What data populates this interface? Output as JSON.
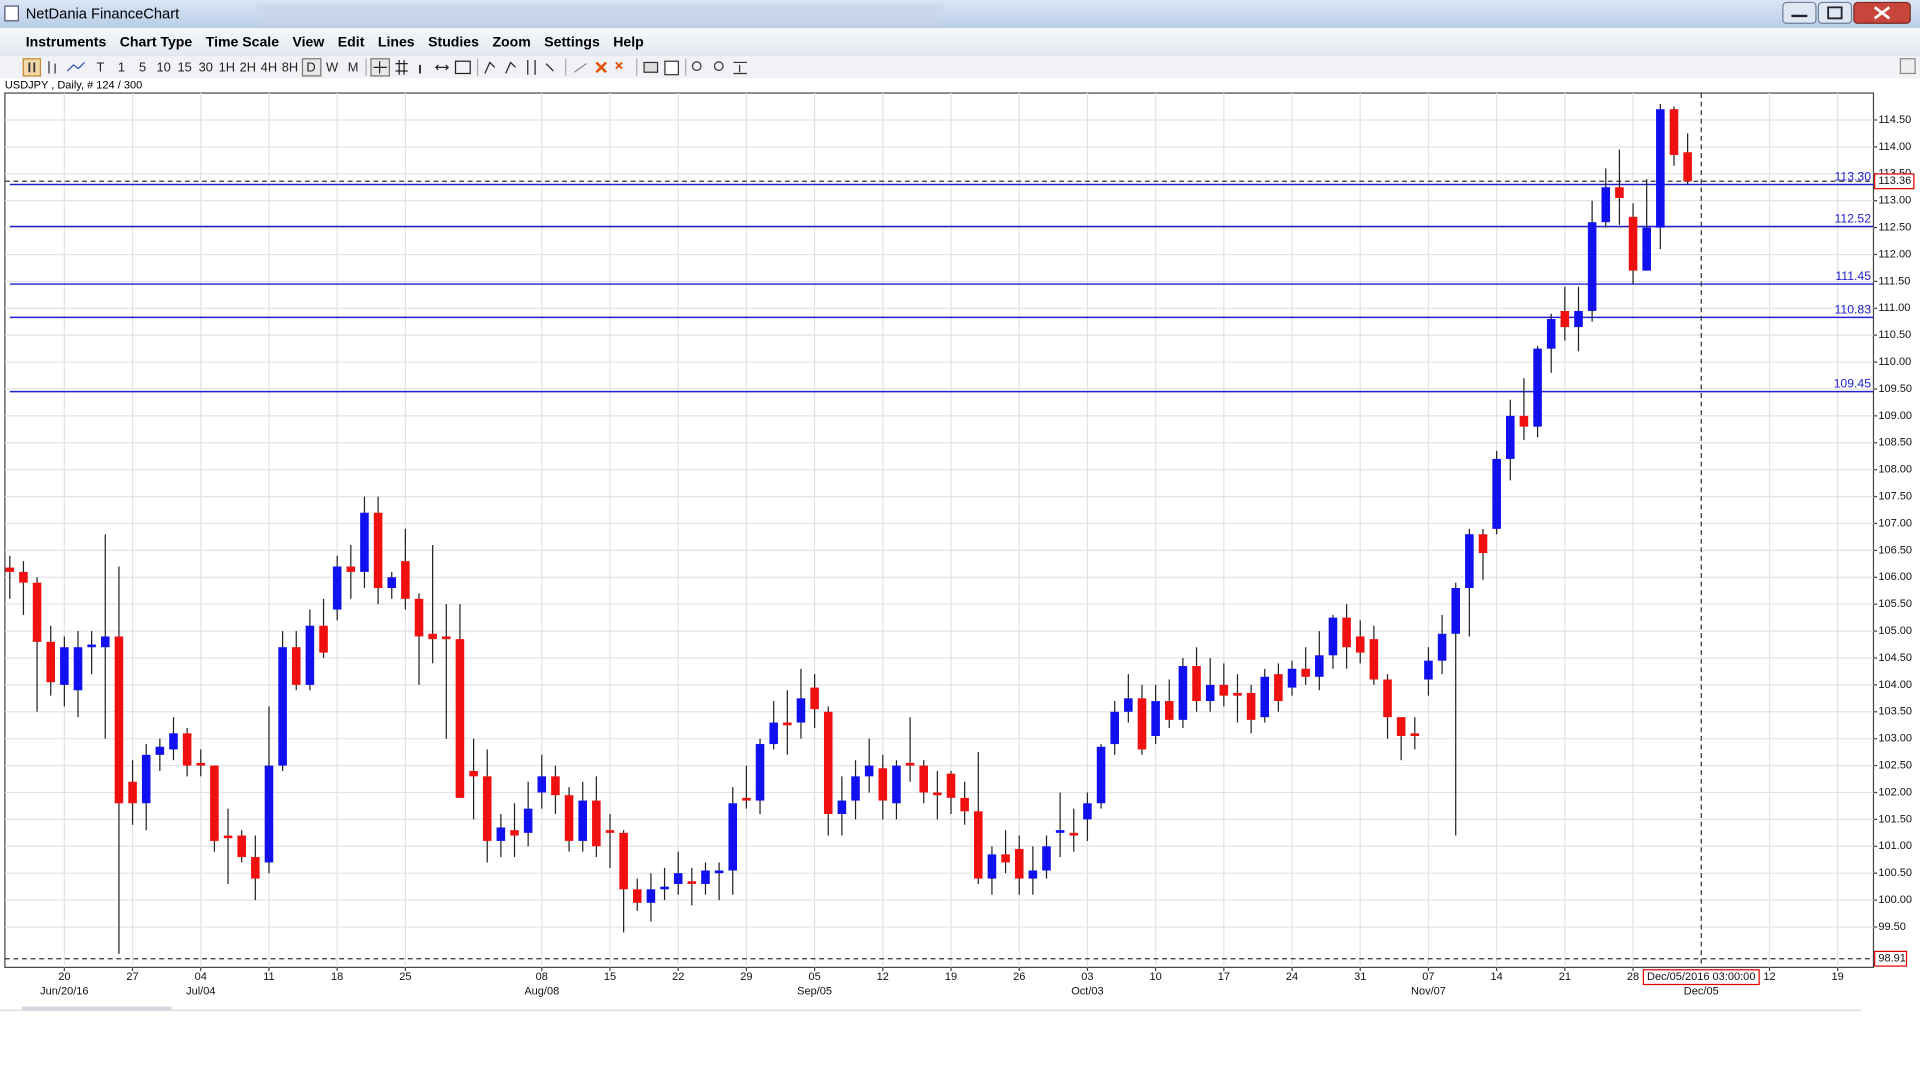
{
  "window": {
    "title": "NetDania FinanceChart",
    "menu": [
      "Instruments",
      "Chart Type",
      "Time Scale",
      "View",
      "Edit",
      "Lines",
      "Studies",
      "Zoom",
      "Settings",
      "Help"
    ],
    "toolbar": [
      "T",
      "1",
      "5",
      "10",
      "15",
      "30",
      "1H",
      "2H",
      "4H",
      "8H",
      "D",
      "W",
      "M"
    ]
  },
  "chart_data": {
    "type": "candlestick",
    "subtitle": "USDJPY , Daily, # 124 / 300",
    "up_color": "#1010f0",
    "down_color": "#f01010",
    "grid": true,
    "x": [
      "2016-06-14",
      "2016-06-15",
      "2016-06-16",
      "2016-06-17",
      "2016-06-20",
      "2016-06-21",
      "2016-06-22",
      "2016-06-23",
      "2016-06-24",
      "2016-06-27",
      "2016-06-28",
      "2016-06-29",
      "2016-06-30",
      "2016-07-01",
      "2016-07-04",
      "2016-07-05",
      "2016-07-06",
      "2016-07-07",
      "2016-07-08",
      "2016-07-11",
      "2016-07-12",
      "2016-07-13",
      "2016-07-14",
      "2016-07-15",
      "2016-07-18",
      "2016-07-19",
      "2016-07-20",
      "2016-07-21",
      "2016-07-22",
      "2016-07-25",
      "2016-07-26",
      "2016-07-27",
      "2016-07-28",
      "2016-07-29",
      "2016-08-01",
      "2016-08-02",
      "2016-08-03",
      "2016-08-04",
      "2016-08-05",
      "2016-08-08",
      "2016-08-09",
      "2016-08-10",
      "2016-08-11",
      "2016-08-12",
      "2016-08-15",
      "2016-08-16",
      "2016-08-17",
      "2016-08-18",
      "2016-08-19",
      "2016-08-22",
      "2016-08-23",
      "2016-08-24",
      "2016-08-25",
      "2016-08-26",
      "2016-08-29",
      "2016-08-30",
      "2016-08-31",
      "2016-09-01",
      "2016-09-02",
      "2016-09-05",
      "2016-09-06",
      "2016-09-07",
      "2016-09-08",
      "2016-09-09",
      "2016-09-12",
      "2016-09-13",
      "2016-09-14",
      "2016-09-15",
      "2016-09-16",
      "2016-09-19",
      "2016-09-20",
      "2016-09-21",
      "2016-09-22",
      "2016-09-23",
      "2016-09-26",
      "2016-09-27",
      "2016-09-28",
      "2016-09-29",
      "2016-09-30",
      "2016-10-03",
      "2016-10-04",
      "2016-10-05",
      "2016-10-06",
      "2016-10-07",
      "2016-10-10",
      "2016-10-11",
      "2016-10-12",
      "2016-10-13",
      "2016-10-14",
      "2016-10-17",
      "2016-10-18",
      "2016-10-19",
      "2016-10-20",
      "2016-10-21",
      "2016-10-24",
      "2016-10-25",
      "2016-10-26",
      "2016-10-27",
      "2016-10-28",
      "2016-10-31",
      "2016-11-01",
      "2016-11-02",
      "2016-11-03",
      "2016-11-04",
      "2016-11-07",
      "2016-11-08",
      "2016-11-09",
      "2016-11-10",
      "2016-11-11",
      "2016-11-14",
      "2016-11-15",
      "2016-11-16",
      "2016-11-17",
      "2016-11-18",
      "2016-11-21",
      "2016-11-22",
      "2016-11-23",
      "2016-11-24",
      "2016-11-25",
      "2016-11-28",
      "2016-11-29",
      "2016-11-30",
      "2016-12-01",
      "2016-12-02"
    ],
    "open": [
      106.18,
      106.1,
      105.9,
      104.8,
      104.0,
      103.9,
      104.7,
      104.7,
      104.9,
      102.2,
      101.8,
      102.7,
      102.8,
      103.1,
      102.55,
      102.5,
      101.2,
      101.2,
      100.8,
      100.7,
      102.5,
      104.7,
      104.0,
      105.1,
      105.4,
      106.2,
      106.1,
      107.2,
      105.8,
      106.3,
      105.6,
      104.95,
      104.9,
      104.85,
      102.4,
      102.3,
      101.1,
      101.3,
      101.25,
      102.0,
      102.3,
      101.95,
      101.1,
      101.85,
      101.3,
      101.25,
      100.2,
      99.95,
      100.2,
      100.3,
      100.35,
      100.3,
      100.5,
      100.55,
      101.9,
      101.85,
      102.9,
      103.3,
      103.3,
      103.95,
      103.5,
      101.6,
      101.85,
      102.3,
      102.45,
      101.8,
      102.55,
      102.5,
      102.0,
      102.35,
      101.9,
      101.65,
      100.4,
      100.85,
      100.95,
      100.4,
      100.55,
      101.25,
      101.25,
      101.5,
      101.8,
      102.9,
      103.5,
      103.75,
      103.05,
      103.7,
      103.35,
      104.35,
      103.7,
      104.0,
      103.85,
      103.85,
      103.4,
      104.2,
      103.95,
      104.3,
      104.15,
      104.55,
      105.25,
      104.9,
      104.85,
      104.1,
      103.4,
      103.1,
      104.1,
      104.45,
      104.95,
      105.8,
      106.8,
      106.9,
      108.2,
      109.0,
      108.8,
      110.25,
      110.95,
      110.65,
      110.95,
      112.6,
      113.25,
      112.7,
      111.7,
      112.5,
      114.7,
      113.9
    ],
    "high": [
      106.4,
      106.3,
      106.0,
      105.1,
      104.9,
      105.0,
      105.0,
      106.8,
      106.2,
      102.6,
      102.9,
      103.0,
      103.4,
      103.2,
      102.8,
      102.5,
      101.7,
      101.3,
      101.2,
      103.6,
      105.0,
      105.0,
      105.4,
      105.6,
      106.4,
      106.6,
      107.5,
      107.5,
      106.1,
      106.9,
      105.7,
      106.6,
      105.5,
      105.5,
      103.0,
      102.8,
      101.6,
      101.8,
      102.2,
      102.7,
      102.5,
      102.1,
      102.2,
      102.3,
      101.6,
      101.3,
      100.4,
      100.5,
      100.6,
      100.9,
      100.6,
      100.7,
      100.7,
      102.1,
      102.5,
      103.0,
      103.7,
      103.9,
      104.3,
      104.2,
      103.6,
      102.3,
      102.6,
      103.0,
      102.7,
      102.6,
      103.4,
      102.6,
      102.4,
      102.4,
      102.2,
      102.75,
      101.0,
      101.3,
      101.2,
      101.0,
      101.2,
      102.0,
      101.7,
      102.0,
      102.9,
      103.7,
      104.2,
      104.0,
      104.0,
      104.1,
      104.5,
      104.7,
      104.5,
      104.4,
      104.2,
      104.0,
      104.3,
      104.4,
      104.45,
      104.7,
      105.0,
      105.3,
      105.5,
      105.2,
      105.1,
      104.2,
      103.4,
      103.4,
      104.7,
      105.3,
      105.9,
      106.9,
      106.9,
      108.35,
      109.3,
      109.7,
      110.3,
      110.9,
      111.4,
      111.4,
      113.0,
      113.6,
      113.95,
      112.95,
      113.4,
      114.8,
      114.75,
      114.25
    ],
    "low": [
      105.6,
      105.3,
      103.5,
      103.8,
      103.6,
      103.4,
      104.2,
      103.0,
      99.0,
      101.4,
      101.3,
      102.4,
      102.6,
      102.3,
      102.3,
      100.9,
      100.3,
      100.7,
      100.0,
      100.5,
      102.4,
      103.9,
      103.9,
      104.5,
      105.2,
      105.6,
      105.8,
      105.5,
      105.6,
      105.4,
      104.0,
      104.4,
      103.0,
      101.9,
      101.5,
      100.7,
      100.8,
      100.8,
      101.0,
      101.7,
      101.6,
      100.9,
      100.9,
      100.8,
      100.6,
      99.4,
      99.8,
      99.6,
      100.0,
      100.1,
      99.9,
      100.1,
      100.0,
      100.1,
      101.7,
      101.6,
      102.8,
      102.7,
      103.0,
      103.2,
      101.2,
      101.2,
      101.5,
      102.0,
      101.5,
      101.5,
      102.2,
      101.8,
      101.5,
      101.6,
      101.4,
      100.3,
      100.1,
      100.5,
      100.1,
      100.1,
      100.4,
      100.8,
      100.9,
      101.1,
      101.7,
      102.7,
      103.3,
      102.7,
      102.9,
      103.2,
      103.2,
      103.5,
      103.5,
      103.6,
      103.3,
      103.1,
      103.3,
      103.5,
      103.8,
      104.0,
      103.9,
      104.3,
      104.3,
      104.4,
      104.0,
      103.0,
      102.6,
      102.8,
      103.8,
      104.2,
      101.2,
      104.9,
      105.95,
      106.8,
      107.8,
      108.55,
      108.6,
      109.8,
      110.4,
      110.2,
      110.75,
      112.5,
      112.55,
      111.45,
      111.7,
      112.1,
      113.65,
      113.3
    ],
    "close": [
      106.1,
      105.9,
      104.8,
      104.05,
      104.7,
      104.7,
      104.75,
      104.9,
      101.8,
      101.8,
      102.7,
      102.85,
      103.1,
      102.5,
      102.5,
      101.1,
      101.15,
      100.8,
      100.4,
      102.5,
      104.7,
      104.0,
      105.1,
      104.6,
      106.2,
      106.1,
      107.2,
      105.8,
      106.0,
      105.6,
      104.9,
      104.85,
      104.85,
      101.9,
      102.3,
      101.1,
      101.35,
      101.2,
      101.7,
      102.3,
      101.95,
      101.1,
      101.85,
      101.0,
      101.25,
      100.2,
      99.95,
      100.2,
      100.25,
      100.5,
      100.3,
      100.55,
      100.55,
      101.8,
      101.85,
      102.9,
      103.3,
      103.25,
      103.75,
      103.55,
      101.6,
      101.85,
      102.3,
      102.5,
      101.85,
      102.5,
      102.5,
      102.0,
      101.95,
      101.9,
      101.65,
      100.4,
      100.85,
      100.7,
      100.4,
      100.55,
      101.0,
      101.3,
      101.2,
      101.8,
      102.85,
      103.5,
      103.75,
      102.8,
      103.7,
      103.35,
      104.35,
      103.7,
      104.0,
      103.8,
      103.8,
      103.35,
      104.15,
      103.7,
      104.3,
      104.15,
      104.55,
      105.25,
      104.7,
      104.6,
      104.1,
      103.4,
      103.05,
      103.05,
      104.45,
      104.95,
      105.8,
      106.8,
      106.45,
      108.2,
      109.0,
      108.8,
      110.25,
      110.8,
      110.65,
      110.95,
      112.6,
      113.25,
      113.05,
      111.7,
      112.5,
      114.7,
      113.85,
      113.36
    ],
    "ylim": [
      98.75,
      115.0
    ],
    "yticks": [
      {
        "value": 99.5,
        "label": "99.50"
      },
      {
        "value": 100,
        "label": "100.00"
      },
      {
        "value": 100.5,
        "label": "100.50"
      },
      {
        "value": 101,
        "label": "101.00"
      },
      {
        "value": 101.5,
        "label": "101.50"
      },
      {
        "value": 102,
        "label": "102.00"
      },
      {
        "value": 102.5,
        "label": "102.50"
      },
      {
        "value": 103,
        "label": "103.00"
      },
      {
        "value": 103.5,
        "label": "103.50"
      },
      {
        "value": 104,
        "label": "104.00"
      },
      {
        "value": 104.5,
        "label": "104.50"
      },
      {
        "value": 105,
        "label": "105.00"
      },
      {
        "value": 105.5,
        "label": "105.50"
      },
      {
        "value": 106,
        "label": "106.00"
      },
      {
        "value": 106.5,
        "label": "106.50"
      },
      {
        "value": 107,
        "label": "107.00"
      },
      {
        "value": 107.5,
        "label": "107.50"
      },
      {
        "value": 108,
        "label": "108.00"
      },
      {
        "value": 108.5,
        "label": "108.50"
      },
      {
        "value": 109,
        "label": "109.00"
      },
      {
        "value": 109.5,
        "label": "109.50"
      },
      {
        "value": 110,
        "label": "110.00"
      },
      {
        "value": 110.5,
        "label": "110.50"
      },
      {
        "value": 111,
        "label": "111.00"
      },
      {
        "value": 111.5,
        "label": "111.50"
      },
      {
        "value": 112,
        "label": "112.00"
      },
      {
        "value": 112.5,
        "label": "112.50"
      },
      {
        "value": 113,
        "label": "113.00"
      },
      {
        "value": 113.5,
        "label": "113.50"
      },
      {
        "value": 114,
        "label": "114.00"
      },
      {
        "value": 114.5,
        "label": "114.50"
      }
    ],
    "xticks": [
      {
        "value": "2016-06-20",
        "label": "20"
      },
      {
        "value": "2016-06-27",
        "label": "27"
      },
      {
        "value": "2016-07-04",
        "label": "04"
      },
      {
        "value": "2016-07-11",
        "label": "11"
      },
      {
        "value": "2016-07-18",
        "label": "18"
      },
      {
        "value": "2016-07-25",
        "label": "25"
      },
      {
        "value": "2016-08-08",
        "label": "08"
      },
      {
        "value": "2016-08-15",
        "label": "15"
      },
      {
        "value": "2016-08-22",
        "label": "22"
      },
      {
        "value": "2016-08-29",
        "label": "29"
      },
      {
        "value": "2016-09-05",
        "label": "05"
      },
      {
        "value": "2016-09-12",
        "label": "12"
      },
      {
        "value": "2016-09-19",
        "label": "19"
      },
      {
        "value": "2016-09-26",
        "label": "26"
      },
      {
        "value": "2016-10-03",
        "label": "03"
      },
      {
        "value": "2016-10-10",
        "label": "10"
      },
      {
        "value": "2016-10-17",
        "label": "17"
      },
      {
        "value": "2016-10-24",
        "label": "24"
      },
      {
        "value": "2016-10-31",
        "label": "31"
      },
      {
        "value": "2016-11-07",
        "label": "07"
      },
      {
        "value": "2016-11-14",
        "label": "14"
      },
      {
        "value": "2016-11-21",
        "label": "21"
      },
      {
        "value": "2016-11-28",
        "label": "28"
      },
      {
        "value": "2016-12-12",
        "label": "12"
      },
      {
        "value": "2016-12-19",
        "label": "19"
      }
    ],
    "xticks_major": [
      {
        "value": "2016-06-20",
        "label": "Jun/20/16"
      },
      {
        "value": "2016-07-04",
        "label": "Jul/04"
      },
      {
        "value": "2016-08-08",
        "label": "Aug/08"
      },
      {
        "value": "2016-09-05",
        "label": "Sep/05"
      },
      {
        "value": "2016-10-03",
        "label": "Oct/03"
      },
      {
        "value": "2016-11-07",
        "label": "Nov/07"
      },
      {
        "value": "2016-12-05",
        "label": "Dec/05"
      }
    ],
    "hlines": [
      {
        "value": 113.3,
        "label": "113.30"
      },
      {
        "value": 112.52,
        "label": "112.52"
      },
      {
        "value": 111.45,
        "label": "111.45"
      },
      {
        "value": 110.83,
        "label": "110.83"
      },
      {
        "value": 109.45,
        "label": "109.45"
      }
    ],
    "hline_color": "#2020d0",
    "last_price": {
      "value": 113.36,
      "label": "113.36"
    },
    "low_marker": {
      "value": 98.91,
      "label": "98.91"
    },
    "cursor": {
      "value": "2016-12-05",
      "label": "Dec/05/2016 03:00:00"
    }
  }
}
